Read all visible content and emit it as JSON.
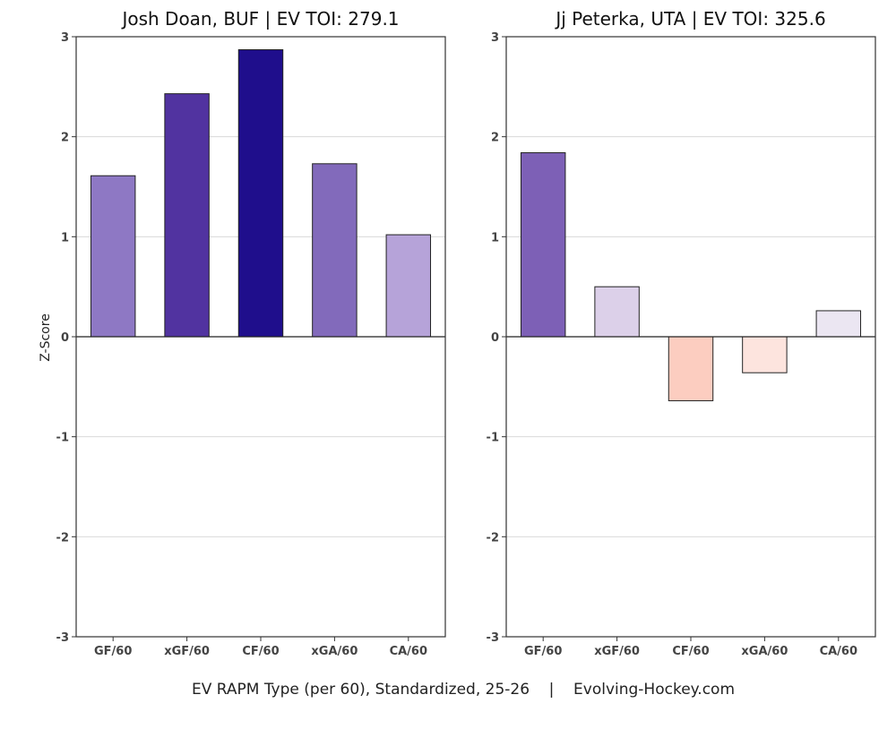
{
  "footer": "EV RAPM Type (per 60), Standardized, 25-26    |    Evolving-Hockey.com",
  "ylabel": "Z-Score",
  "chart_data": [
    {
      "type": "bar",
      "title": "Josh Doan, BUF  |  EV TOI: 279.1",
      "categories": [
        "GF/60",
        "xGF/60",
        "CF/60",
        "xGA/60",
        "CA/60"
      ],
      "values": [
        1.61,
        2.43,
        2.87,
        1.73,
        1.02
      ],
      "colors": [
        "#8e78c4",
        "#5133a0",
        "#1f0e8c",
        "#826abb",
        "#b6a3d9"
      ],
      "ylabel": "Z-Score",
      "ylim": [
        -3,
        3
      ],
      "yticks": [
        -3,
        -2,
        -1,
        0,
        1,
        2,
        3
      ],
      "grid": true
    },
    {
      "type": "bar",
      "title": "Jj Peterka, UTA  |  EV TOI: 325.6",
      "categories": [
        "GF/60",
        "xGF/60",
        "CF/60",
        "xGA/60",
        "CA/60"
      ],
      "values": [
        1.84,
        0.5,
        -0.64,
        -0.36,
        0.26
      ],
      "colors": [
        "#7d60b6",
        "#dcd0e9",
        "#fccdc0",
        "#fde4de",
        "#ebe6f2"
      ],
      "ylabel": "",
      "ylim": [
        -3,
        3
      ],
      "yticks": [
        -3,
        -2,
        -1,
        0,
        1,
        2,
        3
      ],
      "grid": true
    }
  ]
}
